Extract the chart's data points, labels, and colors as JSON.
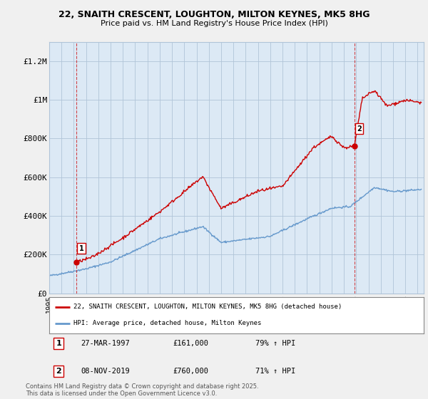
{
  "title_line1": "22, SNAITH CRESCENT, LOUGHTON, MILTON KEYNES, MK5 8HG",
  "title_line2": "Price paid vs. HM Land Registry's House Price Index (HPI)",
  "ylabel_ticks": [
    "£0",
    "£200K",
    "£400K",
    "£600K",
    "£800K",
    "£1M",
    "£1.2M"
  ],
  "ytick_vals": [
    0,
    200000,
    400000,
    600000,
    800000,
    1000000,
    1200000
  ],
  "ylim": [
    0,
    1300000
  ],
  "xlim_start": 1995.0,
  "xlim_end": 2025.5,
  "transaction1_x": 1997.23,
  "transaction1_y": 161000,
  "transaction1_label": "1",
  "transaction2_x": 2019.85,
  "transaction2_y": 760000,
  "transaction2_label": "2",
  "legend_line1": "22, SNAITH CRESCENT, LOUGHTON, MILTON KEYNES, MK5 8HG (detached house)",
  "legend_line2": "HPI: Average price, detached house, Milton Keynes",
  "annotation1_date": "27-MAR-1997",
  "annotation1_price": "£161,000",
  "annotation1_hpi": "79% ↑ HPI",
  "annotation2_date": "08-NOV-2019",
  "annotation2_price": "£760,000",
  "annotation2_hpi": "71% ↑ HPI",
  "footer": "Contains HM Land Registry data © Crown copyright and database right 2025.\nThis data is licensed under the Open Government Licence v3.0.",
  "line_color_red": "#cc0000",
  "line_color_blue": "#6699cc",
  "background_color": "#f0f0f0",
  "plot_bg_color": "#dce9f5",
  "grid_color": "#b0c4d8"
}
